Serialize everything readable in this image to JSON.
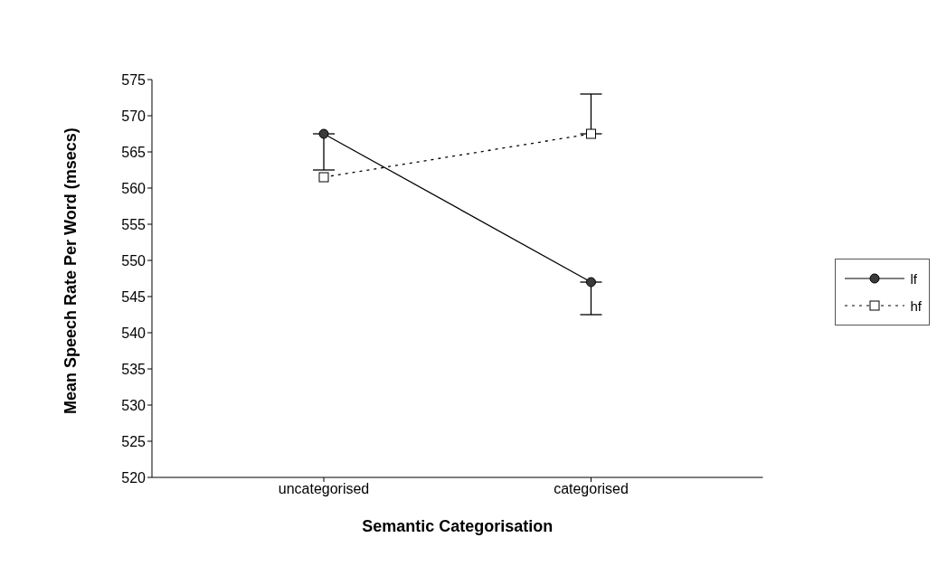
{
  "chart_data": {
    "type": "line",
    "xlabel": "Semantic Categorisation",
    "ylabel": "Mean Speech Rate Per Word (msecs)",
    "categories": [
      "uncategorised",
      "categorised"
    ],
    "series": [
      {
        "name": "lf",
        "color": "#000000",
        "marker": "circle",
        "line_style": "solid",
        "values": [
          567.5,
          547
        ],
        "errors": [
          [
            562.5,
            567.5
          ],
          [
            542.5,
            547
          ]
        ]
      },
      {
        "name": "hf",
        "color": "#000000",
        "marker": "square",
        "line_style": "dotted",
        "values": [
          561.5,
          567.5
        ],
        "errors": [
          null,
          [
            567.5,
            573
          ]
        ]
      }
    ],
    "ylim": [
      520,
      575
    ],
    "yticks": [
      520,
      525,
      530,
      535,
      540,
      545,
      550,
      555,
      560,
      565,
      570,
      575
    ],
    "grid": false,
    "legend": "right"
  }
}
